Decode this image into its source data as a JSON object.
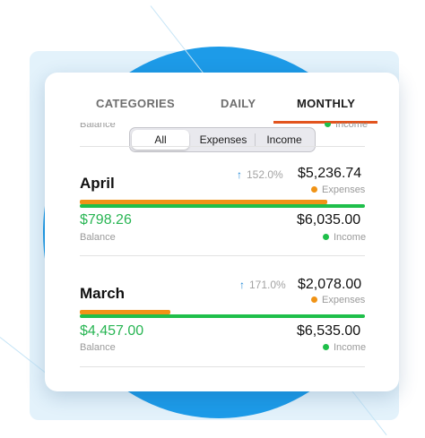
{
  "tabs": [
    {
      "label": "CATEGORIES",
      "active": false
    },
    {
      "label": "DAILY",
      "active": false
    },
    {
      "label": "MONTHLY",
      "active": true
    }
  ],
  "filter": {
    "options": [
      "All",
      "Expenses",
      "Income"
    ],
    "selected": "All"
  },
  "previous_row": {
    "balance_label": "Balance",
    "income_label": "Income"
  },
  "months": [
    {
      "name": "April",
      "change_pct": "152.0%",
      "expenses": "$5,236.74",
      "expenses_label": "Expenses",
      "balance": "$798.26",
      "balance_label": "Balance",
      "income": "$6,035.00",
      "income_label": "Income",
      "expenses_ratio": 0.868,
      "income_ratio": 1.0
    },
    {
      "name": "March",
      "change_pct": "171.0%",
      "expenses": "$2,078.00",
      "expenses_label": "Expenses",
      "balance": "$4,457.00",
      "balance_label": "Balance",
      "income": "$6,535.00",
      "income_label": "Income",
      "expenses_ratio": 0.318,
      "income_ratio": 1.0
    }
  ],
  "colors": {
    "accent_tab": "#e2541e",
    "expenses": "#f09316",
    "income": "#1fbf4a",
    "balance_text": "#28b553",
    "up_arrow": "#1d86d6",
    "background_circle": "#1d9be8"
  },
  "icons": {
    "change": "arrow-up-icon"
  }
}
